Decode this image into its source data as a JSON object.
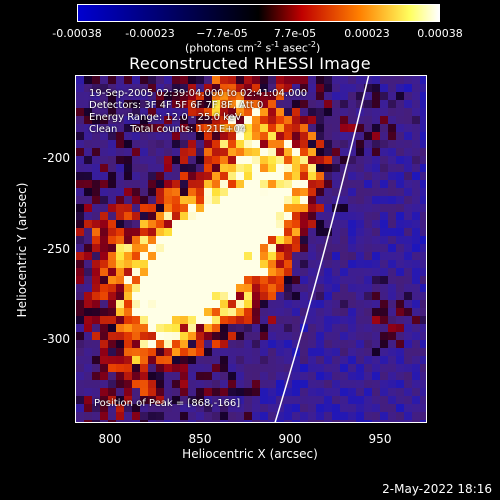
{
  "colorbar": {
    "ticks": [
      "-0.00038",
      "-0.00023",
      "−7.7e-05",
      "7.7e-05",
      "0.00023",
      "0.00038"
    ],
    "unit_prefix": "(photons cm",
    "unit_exp1": "-2",
    "unit_mid1": " s",
    "unit_exp2": "-1",
    "unit_mid2": " asec",
    "unit_exp3": "-2",
    "unit_suffix": ")",
    "colors": [
      "#0000d0",
      "#000000",
      "#c00000",
      "#ff8000",
      "#ffff60",
      "#ffffff"
    ]
  },
  "title": "Reconstructed RHESSI Image",
  "annotations": {
    "line1": "19-Sep-2005 02:39:04.000 to 02:41:04.000",
    "line2": "Detectors: 3F 4F 5F 6F 7F 8F, Att 0",
    "line3": "Energy Range: 12.0 - 25.0 keV",
    "line4": "Clean    Total counts: 1.21E+04",
    "peak": "Position of Peak = [868,-166]"
  },
  "axes": {
    "xlabel": "Heliocentric X (arcsec)",
    "ylabel": "Heliocentric Y (arcsec)",
    "xticks": [
      "800",
      "850",
      "900",
      "950"
    ],
    "yticks": [
      "-200",
      "-250",
      "-300"
    ]
  },
  "timestamp": "2-May-2022 18:16"
}
